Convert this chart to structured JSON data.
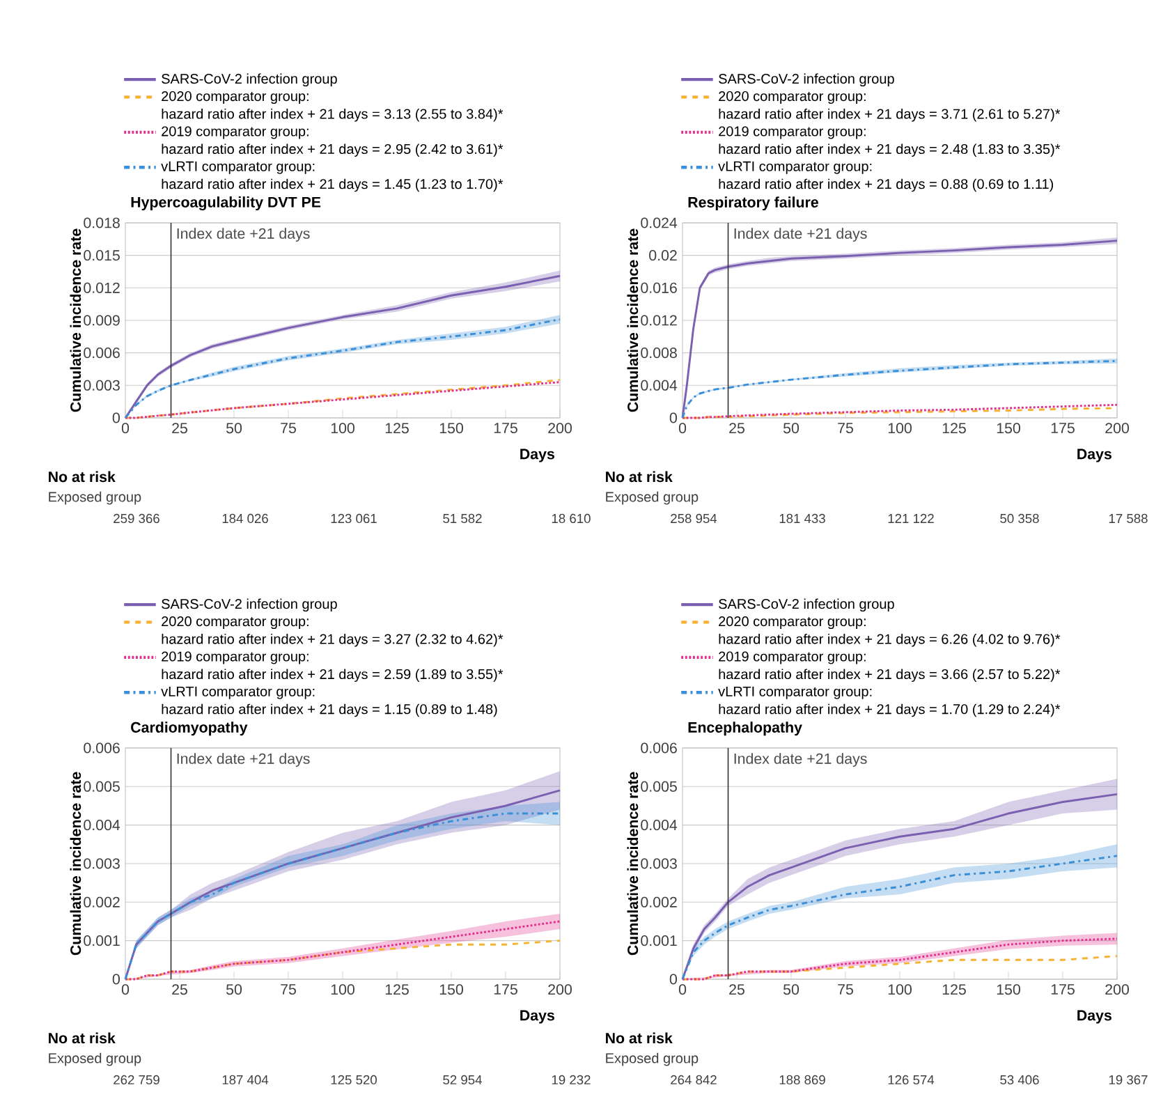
{
  "chart_data": [
    {
      "type": "line",
      "title": "Hypercoagulability DVT PE",
      "xlabel": "Days",
      "ylabel": "Cumulative incidence rate",
      "xlim": [
        0,
        200
      ],
      "xticks": [
        0,
        25,
        50,
        75,
        100,
        125,
        150,
        175,
        200
      ],
      "ylim": [
        0,
        0.018
      ],
      "yticks": [
        0,
        0.003,
        0.006,
        0.009,
        0.012,
        0.015,
        0.018
      ],
      "grid": "y",
      "legend": "top",
      "x": [
        0,
        5,
        10,
        15,
        21,
        30,
        40,
        50,
        75,
        100,
        125,
        150,
        175,
        200
      ],
      "ref_lines": [
        {
          "axis": "x",
          "value": 21,
          "label": "Index date +21 days",
          "color": "#333333"
        }
      ],
      "annotations": [
        "hazard ratio after index + 21 days = 3.13 (2.55 to 3.84)*",
        "hazard ratio after index + 21 days = 2.95 (2.42 to 3.61)*",
        "hazard ratio after index + 21 days = 1.45 (1.23 to 1.70)*",
        "No at risk",
        "Exposed group",
        "259 366",
        "184 026",
        "123 061",
        "51 582",
        "18 610"
      ],
      "series": [
        {
          "name": "SARS-CoV-2 infection group",
          "color": "#7b5fb0",
          "line_style": "solid",
          "values": [
            0,
            0.0015,
            0.003,
            0.004,
            0.0048,
            0.0058,
            0.0066,
            0.0071,
            0.0083,
            0.0093,
            0.0101,
            0.0113,
            0.0121,
            0.0131
          ],
          "lower": [
            0,
            0.0013,
            0.0028,
            0.0038,
            0.0046,
            0.0056,
            0.0064,
            0.0069,
            0.0081,
            0.0091,
            0.0098,
            0.011,
            0.0117,
            0.0126
          ],
          "upper": [
            0,
            0.0017,
            0.0032,
            0.0042,
            0.005,
            0.006,
            0.0068,
            0.0073,
            0.0085,
            0.0095,
            0.0104,
            0.0116,
            0.0125,
            0.0136
          ]
        },
        {
          "name": "2020 comparator group:",
          "color": "#f5b335",
          "line_style": "dashed",
          "values": [
            0,
            0,
            0.0001,
            0.0002,
            0.0003,
            0.0005,
            0.0007,
            0.0009,
            0.0013,
            0.0018,
            0.0022,
            0.0026,
            0.003,
            0.0035
          ]
        },
        {
          "name": "2019 comparator group:",
          "color": "#e0338f",
          "line_style": "dotted",
          "values": [
            0,
            0,
            0.0001,
            0.0002,
            0.0003,
            0.0005,
            0.0007,
            0.0009,
            0.0013,
            0.0017,
            0.0021,
            0.0025,
            0.0029,
            0.0033
          ]
        },
        {
          "name": "vLRTI comparator group:",
          "color": "#3b8fd6",
          "line_style": "dashdot",
          "values": [
            0,
            0.0012,
            0.002,
            0.0025,
            0.003,
            0.0035,
            0.004,
            0.0045,
            0.0055,
            0.0062,
            0.007,
            0.0075,
            0.0081,
            0.0091
          ],
          "lower": [
            0,
            0.0011,
            0.0019,
            0.0024,
            0.0029,
            0.0034,
            0.0038,
            0.0043,
            0.0053,
            0.006,
            0.0068,
            0.0072,
            0.0078,
            0.0087
          ],
          "upper": [
            0,
            0.0013,
            0.0021,
            0.0026,
            0.0031,
            0.0036,
            0.0042,
            0.0047,
            0.0057,
            0.0064,
            0.0072,
            0.0078,
            0.0084,
            0.0095
          ]
        }
      ]
    },
    {
      "type": "line",
      "title": "Respiratory failure",
      "xlabel": "Days",
      "ylabel": "Cumulative incidence rate",
      "xlim": [
        0,
        200
      ],
      "xticks": [
        0,
        25,
        50,
        75,
        100,
        125,
        150,
        175,
        200
      ],
      "ylim": [
        0,
        0.024
      ],
      "yticks": [
        0,
        0.004,
        0.008,
        0.012,
        0.016,
        0.02,
        0.024
      ],
      "grid": "y",
      "legend": "top",
      "x": [
        0,
        2,
        5,
        8,
        12,
        15,
        21,
        30,
        40,
        50,
        75,
        100,
        125,
        150,
        175,
        200
      ],
      "ref_lines": [
        {
          "axis": "x",
          "value": 21,
          "label": "Index date +21 days",
          "color": "#333333"
        }
      ],
      "annotations": [
        "hazard ratio after index + 21 days = 3.71 (2.61 to 5.27)*",
        "hazard ratio after index + 21 days = 2.48 (1.83 to 3.35)*",
        "hazard ratio after index + 21 days = 0.88 (0.69 to 1.11)",
        "No at risk",
        "Exposed group",
        "258 954",
        "181 433",
        "121 122",
        "50 358",
        "17 588"
      ],
      "series": [
        {
          "name": "SARS-CoV-2 infection group",
          "color": "#7b5fb0",
          "line_style": "solid",
          "values": [
            0,
            0.004,
            0.011,
            0.016,
            0.0178,
            0.0182,
            0.0186,
            0.019,
            0.0193,
            0.0196,
            0.0199,
            0.0203,
            0.0206,
            0.021,
            0.0213,
            0.0218
          ],
          "lower": [
            0,
            0.0038,
            0.0107,
            0.0157,
            0.0175,
            0.0179,
            0.0183,
            0.0187,
            0.019,
            0.0193,
            0.0196,
            0.02,
            0.0203,
            0.0207,
            0.021,
            0.0214
          ],
          "upper": [
            0,
            0.0042,
            0.0113,
            0.0163,
            0.0181,
            0.0185,
            0.0189,
            0.0193,
            0.0197,
            0.0199,
            0.0202,
            0.0206,
            0.0209,
            0.0213,
            0.0216,
            0.0222
          ]
        },
        {
          "name": "2020 comparator group:",
          "color": "#f5b335",
          "line_style": "dashed",
          "values": [
            0,
            0,
            0,
            0,
            0.0001,
            0.0001,
            0.0001,
            0.0002,
            0.0003,
            0.0004,
            0.0006,
            0.0007,
            0.0008,
            0.0009,
            0.0011,
            0.0012
          ]
        },
        {
          "name": "2019 comparator group:",
          "color": "#e0338f",
          "line_style": "dotted",
          "values": [
            0,
            0,
            0,
            0,
            0.0001,
            0.0001,
            0.0002,
            0.0003,
            0.0004,
            0.0005,
            0.0007,
            0.0009,
            0.001,
            0.0012,
            0.0014,
            0.0016
          ]
        },
        {
          "name": "vLRTI comparator group:",
          "color": "#3b8fd6",
          "line_style": "dashdot",
          "values": [
            0,
            0.0015,
            0.0025,
            0.003,
            0.0033,
            0.0035,
            0.0037,
            0.0041,
            0.0044,
            0.0047,
            0.0053,
            0.0058,
            0.0062,
            0.0066,
            0.0068,
            0.007
          ],
          "lower": [
            0,
            0.0014,
            0.0024,
            0.0029,
            0.0032,
            0.0034,
            0.0036,
            0.004,
            0.0043,
            0.0046,
            0.0051,
            0.0056,
            0.006,
            0.0064,
            0.0066,
            0.0067
          ],
          "upper": [
            0,
            0.0016,
            0.0026,
            0.0031,
            0.0034,
            0.0036,
            0.0038,
            0.0042,
            0.0045,
            0.0048,
            0.0055,
            0.0061,
            0.0065,
            0.0068,
            0.007,
            0.0073
          ]
        }
      ]
    },
    {
      "type": "line",
      "title": "Cardiomyopathy",
      "xlabel": "Days",
      "ylabel": "Cumulative incidence rate",
      "xlim": [
        0,
        200
      ],
      "xticks": [
        0,
        25,
        50,
        75,
        100,
        125,
        150,
        175,
        200
      ],
      "ylim": [
        0,
        0.006
      ],
      "yticks": [
        0,
        0.001,
        0.002,
        0.003,
        0.004,
        0.005,
        0.006
      ],
      "grid": "y",
      "legend": "top",
      "x": [
        0,
        5,
        10,
        15,
        21,
        30,
        40,
        50,
        75,
        100,
        125,
        150,
        175,
        200
      ],
      "ref_lines": [
        {
          "axis": "x",
          "value": 21,
          "label": "Index date +21 days",
          "color": "#333333"
        }
      ],
      "annotations": [
        "hazard ratio after index + 21 days = 3.27 (2.32 to 4.62)*",
        "hazard ratio after index + 21 days = 2.59 (1.89 to 3.55)*",
        "hazard ratio after index + 21 days = 1.15 (0.89 to 1.48)",
        "No at risk",
        "Exposed group",
        "262 759",
        "187 404",
        "125 520",
        "52 954",
        "19 232"
      ],
      "series": [
        {
          "name": "SARS-CoV-2 infection group",
          "color": "#7b5fb0",
          "line_style": "solid",
          "values": [
            0,
            0.0009,
            0.0012,
            0.0015,
            0.0017,
            0.002,
            0.0023,
            0.0025,
            0.003,
            0.0034,
            0.0038,
            0.0042,
            0.0045,
            0.0049
          ],
          "lower": [
            0,
            0.0008,
            0.0011,
            0.0014,
            0.0016,
            0.0018,
            0.0021,
            0.0023,
            0.0028,
            0.0031,
            0.0035,
            0.0038,
            0.004,
            0.0044
          ],
          "upper": [
            0,
            0.001,
            0.0013,
            0.0016,
            0.0018,
            0.0022,
            0.0025,
            0.0027,
            0.0033,
            0.0038,
            0.0041,
            0.0046,
            0.0049,
            0.0054
          ]
        },
        {
          "name": "2020 comparator group:",
          "color": "#f5b335",
          "line_style": "dashed",
          "values": [
            0,
            0,
            0.0001,
            0.0001,
            0.0002,
            0.0002,
            0.0003,
            0.0004,
            0.0005,
            0.0007,
            0.0008,
            0.0009,
            0.0009,
            0.001
          ]
        },
        {
          "name": "2019 comparator group:",
          "color": "#e0338f",
          "line_style": "dotted",
          "values": [
            0,
            0,
            0.0001,
            0.0001,
            0.0002,
            0.0002,
            0.0003,
            0.0004,
            0.0005,
            0.0007,
            0.0009,
            0.0011,
            0.0013,
            0.0015
          ],
          "lower": [
            0,
            2e-05,
            4e-05,
            8e-05,
            0.00012,
            0.00016,
            0.00024,
            0.00033,
            0.00042,
            0.0006,
            0.00077,
            0.00095,
            0.0011,
            0.0013
          ],
          "upper": [
            0,
            4e-05,
            8e-05,
            0.00012,
            0.00018,
            0.00024,
            0.00036,
            0.00047,
            0.00058,
            0.0008,
            0.00103,
            0.00125,
            0.0015,
            0.0017
          ]
        },
        {
          "name": "vLRTI comparator group:",
          "color": "#3b8fd6",
          "line_style": "dashdot",
          "values": [
            0,
            0.0009,
            0.0012,
            0.0015,
            0.0017,
            0.002,
            0.0022,
            0.0025,
            0.003,
            0.0034,
            0.0038,
            0.0041,
            0.0043,
            0.0043
          ],
          "lower": [
            0,
            0.0008,
            0.0011,
            0.0014,
            0.0016,
            0.0019,
            0.0021,
            0.0024,
            0.0029,
            0.0032,
            0.0036,
            0.0039,
            0.0041,
            0.004
          ],
          "upper": [
            0,
            0.001,
            0.0013,
            0.0016,
            0.0018,
            0.0021,
            0.0023,
            0.0026,
            0.0032,
            0.0035,
            0.004,
            0.0043,
            0.0045,
            0.0046
          ]
        }
      ]
    },
    {
      "type": "line",
      "title": "Encephalopathy",
      "xlabel": "Days",
      "ylabel": "Cumulative incidence rate",
      "xlim": [
        0,
        200
      ],
      "xticks": [
        0,
        25,
        50,
        75,
        100,
        125,
        150,
        175,
        200
      ],
      "ylim": [
        0,
        0.006
      ],
      "yticks": [
        0,
        0.001,
        0.002,
        0.003,
        0.004,
        0.005,
        0.006
      ],
      "grid": "y",
      "legend": "top",
      "x": [
        0,
        5,
        10,
        15,
        21,
        30,
        40,
        50,
        75,
        100,
        125,
        150,
        175,
        200
      ],
      "ref_lines": [
        {
          "axis": "x",
          "value": 21,
          "label": "Index date +21 days",
          "color": "#333333"
        }
      ],
      "annotations": [
        "hazard ratio after index + 21 days = 6.26 (4.02 to 9.76)*",
        "hazard ratio after index + 21 days = 3.66 (2.57 to 5.22)*",
        "hazard ratio after index + 21 days = 1.70 (1.29 to 2.24)*",
        "No at risk",
        "Exposed group",
        "264 842",
        "188 869",
        "126 574",
        "53 406",
        "19 367"
      ],
      "series": [
        {
          "name": "SARS-CoV-2 infection group",
          "color": "#7b5fb0",
          "line_style": "solid",
          "values": [
            0,
            0.0008,
            0.0013,
            0.0016,
            0.002,
            0.0024,
            0.0027,
            0.0029,
            0.0034,
            0.0037,
            0.0039,
            0.0043,
            0.0046,
            0.0048
          ],
          "lower": [
            0,
            0.0007,
            0.0012,
            0.0015,
            0.0019,
            0.0022,
            0.0025,
            0.0027,
            0.0032,
            0.0035,
            0.0037,
            0.004,
            0.0043,
            0.0044
          ],
          "upper": [
            0,
            0.0009,
            0.0014,
            0.0017,
            0.0021,
            0.0026,
            0.0029,
            0.0031,
            0.0036,
            0.0039,
            0.0041,
            0.0046,
            0.0049,
            0.0052
          ]
        },
        {
          "name": "2020 comparator group:",
          "color": "#f5b335",
          "line_style": "dashed",
          "values": [
            0,
            0,
            0,
            0.0001,
            0.0001,
            0.0002,
            0.0002,
            0.0002,
            0.0003,
            0.0004,
            0.0005,
            0.0005,
            0.0005,
            0.0006
          ]
        },
        {
          "name": "2019 comparator group:",
          "color": "#e0338f",
          "line_style": "dotted",
          "values": [
            0,
            0,
            0,
            0.0001,
            0.0001,
            0.0002,
            0.0002,
            0.0002,
            0.0004,
            0.0005,
            0.0007,
            0.0009,
            0.001,
            0.00105
          ],
          "lower": [
            0,
            1e-05,
            3e-05,
            4e-05,
            8e-05,
            0.00012,
            0.00016,
            0.00016,
            0.00033,
            0.00042,
            0.0006,
            0.00078,
            0.00087,
            0.0009
          ],
          "upper": [
            0,
            3e-05,
            5e-05,
            8e-05,
            0.00012,
            0.00018,
            0.00024,
            0.00024,
            0.00047,
            0.00058,
            0.0008,
            0.00102,
            0.00113,
            0.0012
          ]
        },
        {
          "name": "vLRTI comparator group:",
          "color": "#3b8fd6",
          "line_style": "dashdot",
          "values": [
            0,
            0.0007,
            0.001,
            0.0012,
            0.0014,
            0.0016,
            0.0018,
            0.0019,
            0.0022,
            0.0024,
            0.0027,
            0.0028,
            0.003,
            0.0032
          ],
          "lower": [
            0,
            0.0006,
            0.0009,
            0.0011,
            0.0013,
            0.0015,
            0.0017,
            0.0018,
            0.0021,
            0.0022,
            0.0025,
            0.0026,
            0.0028,
            0.0029
          ],
          "upper": [
            0,
            0.0008,
            0.0011,
            0.0013,
            0.0015,
            0.0017,
            0.0019,
            0.002,
            0.0024,
            0.0026,
            0.0029,
            0.003,
            0.0032,
            0.0035
          ]
        }
      ]
    }
  ]
}
